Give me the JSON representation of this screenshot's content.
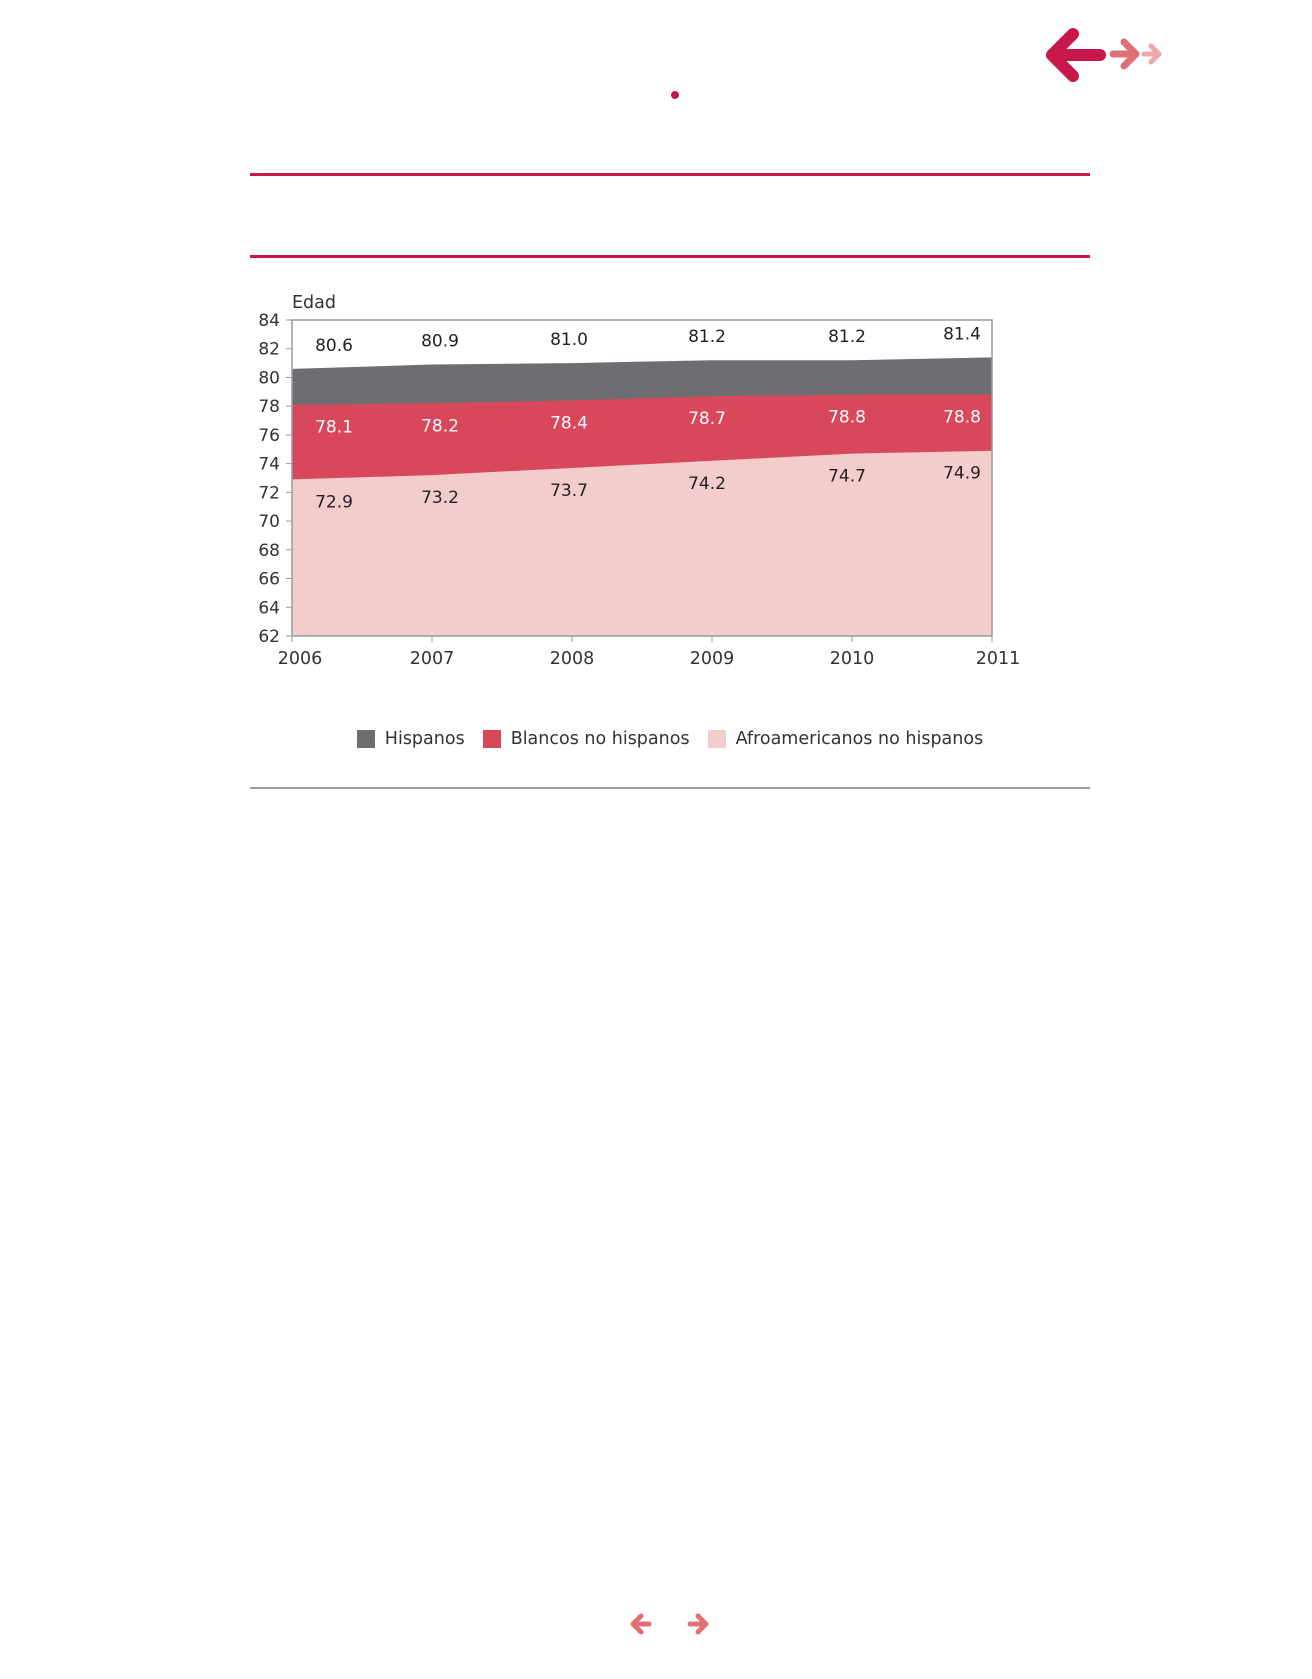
{
  "colors": {
    "accent": "#c8174b",
    "arrow_secondary": "#e07078",
    "arrow_tertiary": "#efa7aa",
    "gray_rule": "#9a9a9a"
  },
  "nav": {
    "top_icons": [
      "arrow-left-icon",
      "arrow-right-icon",
      "arrow-right-small-icon"
    ],
    "bottom_icons": [
      "arrow-left-icon",
      "arrow-right-icon"
    ]
  },
  "chart_data": {
    "type": "area",
    "ylabel": "Edad",
    "xlabel": "",
    "ylim": [
      62,
      84
    ],
    "yticks": [
      62,
      64,
      66,
      68,
      70,
      72,
      74,
      76,
      78,
      80,
      82,
      84
    ],
    "categories": [
      "2006",
      "2007",
      "2008",
      "2009",
      "2010",
      "2011"
    ],
    "grid": false,
    "legend_position": "bottom",
    "series": [
      {
        "name": "Hispanos",
        "color": "#6d6e71",
        "label_color": "#231f20",
        "values": [
          80.6,
          80.9,
          81.0,
          81.2,
          81.2,
          81.4
        ],
        "labels": [
          "80.6",
          "80.9",
          "81.0",
          "81.2",
          "81.2",
          "81.4"
        ]
      },
      {
        "name": "Blancos no hispanos",
        "color": "#d9485a",
        "label_color": "#ffffff",
        "values": [
          78.1,
          78.2,
          78.4,
          78.7,
          78.8,
          78.8
        ],
        "labels": [
          "78.1",
          "78.2",
          "78.4",
          "78.7",
          "78.8",
          "78.8"
        ]
      },
      {
        "name": "Afroamericanos no hispanos",
        "color": "#f3cdcb",
        "label_color": "#231f20",
        "values": [
          72.9,
          73.2,
          73.7,
          74.2,
          74.7,
          74.9
        ],
        "labels": [
          "72.9",
          "73.2",
          "73.7",
          "74.2",
          "74.7",
          "74.9"
        ]
      }
    ]
  }
}
